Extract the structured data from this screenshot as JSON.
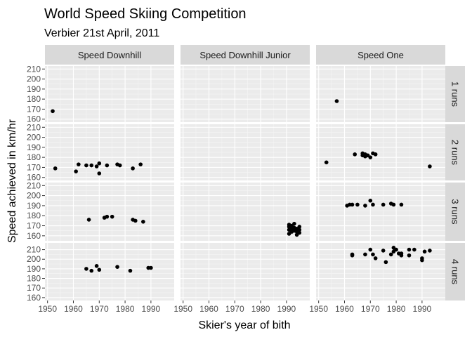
{
  "chart_data": {
    "type": "scatter",
    "title": "World Speed Skiing Competition",
    "subtitle": "Verbier 21st April, 2011",
    "xlabel": "Skier's year of bith",
    "ylabel": "Speed achieved in km/hr",
    "xlim": [
      1949,
      1999
    ],
    "x_ticks": [
      1950,
      1960,
      1970,
      1980,
      1990
    ],
    "columns": [
      "Speed Downhill",
      "Speed Downhill Junior",
      "Speed One"
    ],
    "rows": [
      "1 runs",
      "2 runs",
      "3 runs",
      "4 runs"
    ],
    "row_ylim": [
      [
        157,
        213
      ],
      [
        157,
        213
      ],
      [
        155,
        213
      ],
      [
        157,
        217
      ]
    ],
    "row_y_ticks": [
      [
        160,
        170,
        180,
        190,
        200,
        210
      ],
      [
        160,
        170,
        180,
        190,
        200,
        210
      ],
      [
        160,
        170,
        180,
        190,
        200,
        210
      ],
      [
        160,
        170,
        180,
        190,
        200,
        210
      ]
    ],
    "panels": [
      {
        "row": "1 runs",
        "column": "Speed Downhill",
        "points": [
          [
            1952,
            168
          ]
        ]
      },
      {
        "row": "1 runs",
        "column": "Speed Downhill Junior",
        "points": []
      },
      {
        "row": "1 runs",
        "column": "Speed One",
        "points": [
          [
            1957,
            178
          ]
        ]
      },
      {
        "row": "2 runs",
        "column": "Speed Downhill",
        "points": [
          [
            1953,
            169
          ],
          [
            1961,
            166
          ],
          [
            1962,
            173
          ],
          [
            1965,
            172
          ],
          [
            1967,
            172
          ],
          [
            1969,
            171
          ],
          [
            1970,
            164
          ],
          [
            1970,
            174
          ],
          [
            1973,
            172
          ],
          [
            1977,
            173
          ],
          [
            1978,
            172
          ],
          [
            1983,
            169
          ],
          [
            1986,
            173
          ]
        ]
      },
      {
        "row": "2 runs",
        "column": "Speed Downhill Junior",
        "points": []
      },
      {
        "row": "2 runs",
        "column": "Speed One",
        "points": [
          [
            1953,
            175
          ],
          [
            1964,
            183
          ],
          [
            1967,
            184
          ],
          [
            1967,
            182
          ],
          [
            1968,
            183
          ],
          [
            1968,
            181
          ],
          [
            1969,
            182
          ],
          [
            1970,
            180
          ],
          [
            1971,
            184
          ],
          [
            1972,
            183
          ],
          [
            1993,
            171
          ]
        ]
      },
      {
        "row": "3 runs",
        "column": "Speed Downhill",
        "points": [
          [
            1966,
            176
          ],
          [
            1972,
            178
          ],
          [
            1973,
            179
          ],
          [
            1975,
            179
          ],
          [
            1983,
            176
          ],
          [
            1984,
            175
          ],
          [
            1987,
            174
          ]
        ]
      },
      {
        "row": "3 runs",
        "column": "Speed Downhill Junior",
        "points": [
          [
            1991,
            162
          ],
          [
            1991,
            166
          ],
          [
            1991,
            169
          ],
          [
            1991,
            171
          ],
          [
            1992,
            164
          ],
          [
            1992,
            167
          ],
          [
            1992,
            170
          ],
          [
            1993,
            165
          ],
          [
            1993,
            168
          ],
          [
            1993,
            172
          ],
          [
            1994,
            161
          ],
          [
            1994,
            164
          ],
          [
            1994,
            167
          ],
          [
            1995,
            163
          ],
          [
            1995,
            166
          ],
          [
            1995,
            169
          ]
        ]
      },
      {
        "row": "3 runs",
        "column": "Speed One",
        "points": [
          [
            1961,
            190
          ],
          [
            1962,
            191
          ],
          [
            1963,
            191
          ],
          [
            1965,
            191
          ],
          [
            1968,
            190
          ],
          [
            1970,
            195
          ],
          [
            1971,
            191
          ],
          [
            1975,
            191
          ],
          [
            1978,
            192
          ],
          [
            1979,
            191
          ],
          [
            1982,
            191
          ]
        ]
      },
      {
        "row": "4 runs",
        "column": "Speed Downhill",
        "points": [
          [
            1965,
            190
          ],
          [
            1967,
            188
          ],
          [
            1969,
            193
          ],
          [
            1970,
            189
          ],
          [
            1977,
            192
          ],
          [
            1982,
            188
          ],
          [
            1989,
            191
          ],
          [
            1990,
            191
          ]
        ]
      },
      {
        "row": "4 runs",
        "column": "Speed Downhill Junior",
        "points": []
      },
      {
        "row": "4 runs",
        "column": "Speed One",
        "points": [
          [
            1963,
            205
          ],
          [
            1963,
            204
          ],
          [
            1968,
            205
          ],
          [
            1970,
            210
          ],
          [
            1971,
            205
          ],
          [
            1972,
            201
          ],
          [
            1975,
            209
          ],
          [
            1976,
            197
          ],
          [
            1978,
            205
          ],
          [
            1979,
            212
          ],
          [
            1979,
            208
          ],
          [
            1980,
            210
          ],
          [
            1981,
            206
          ],
          [
            1982,
            204
          ],
          [
            1982,
            206
          ],
          [
            1985,
            210
          ],
          [
            1985,
            204
          ],
          [
            1987,
            210
          ],
          [
            1990,
            201
          ],
          [
            1990,
            199
          ],
          [
            1991,
            208
          ],
          [
            1993,
            209
          ]
        ]
      }
    ]
  }
}
